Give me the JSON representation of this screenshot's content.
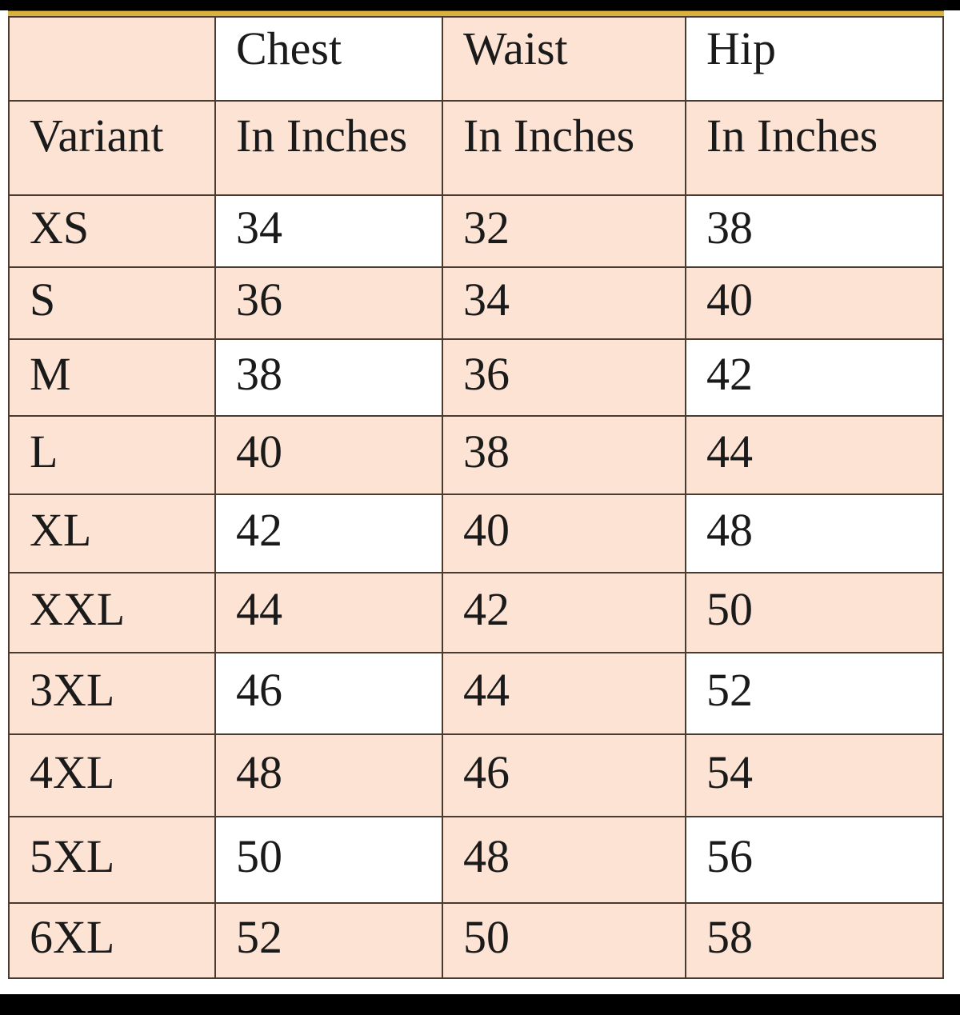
{
  "colors": {
    "peach": "#fde3d4",
    "white": "#ffffff",
    "border": "#4a3a30",
    "gold": "#d8b23c"
  },
  "header_row_1": [
    "",
    "Chest",
    "Waist",
    "Hip"
  ],
  "header_row_2": [
    "Variant",
    "In Inches",
    "In Inches",
    "In Inches"
  ],
  "rows": [
    [
      "XS",
      "34",
      "32",
      "38"
    ],
    [
      "S",
      "36",
      "34",
      "40"
    ],
    [
      "M",
      "38",
      "36",
      "42"
    ],
    [
      "L",
      "40",
      "38",
      "44"
    ],
    [
      "XL",
      "42",
      "40",
      "48"
    ],
    [
      "XXL",
      "44",
      "42",
      "50"
    ],
    [
      "3XL",
      "46",
      "44",
      "52"
    ],
    [
      "4XL",
      "48",
      "46",
      "54"
    ],
    [
      "5XL",
      "50",
      "48",
      "56"
    ],
    [
      "6XL",
      "52",
      "50",
      "58"
    ]
  ]
}
